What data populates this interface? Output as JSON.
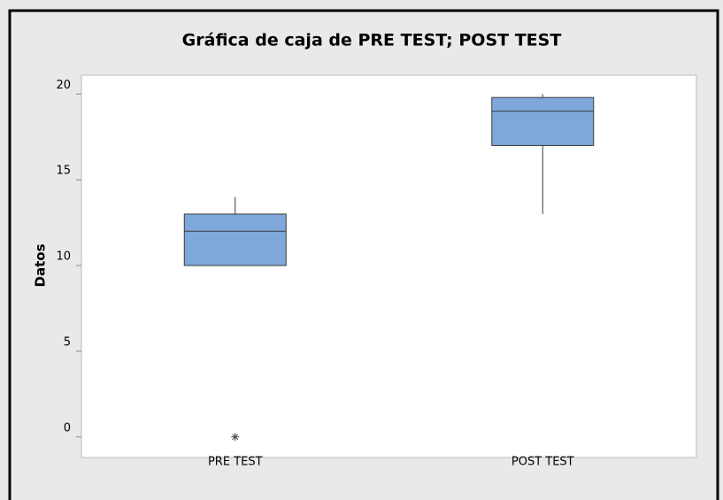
{
  "chart_data": {
    "type": "box",
    "title": "Gráfica de caja de PRE TEST; POST TEST",
    "ylabel": "Datos",
    "categories": [
      "PRE TEST",
      "POST TEST"
    ],
    "boxes": [
      {
        "whisker_low": 10,
        "q1": 10,
        "median": 12,
        "q3": 13,
        "whisker_high": 14,
        "outliers": [
          0
        ]
      },
      {
        "whisker_low": 13,
        "q1": 17,
        "median": 19,
        "q3": 19.8,
        "whisker_high": 20
      }
    ],
    "color": "#7ea8da",
    "ylim": [
      -1.2,
      21.1
    ],
    "yticks": [
      0,
      5,
      10,
      15,
      20
    ]
  }
}
